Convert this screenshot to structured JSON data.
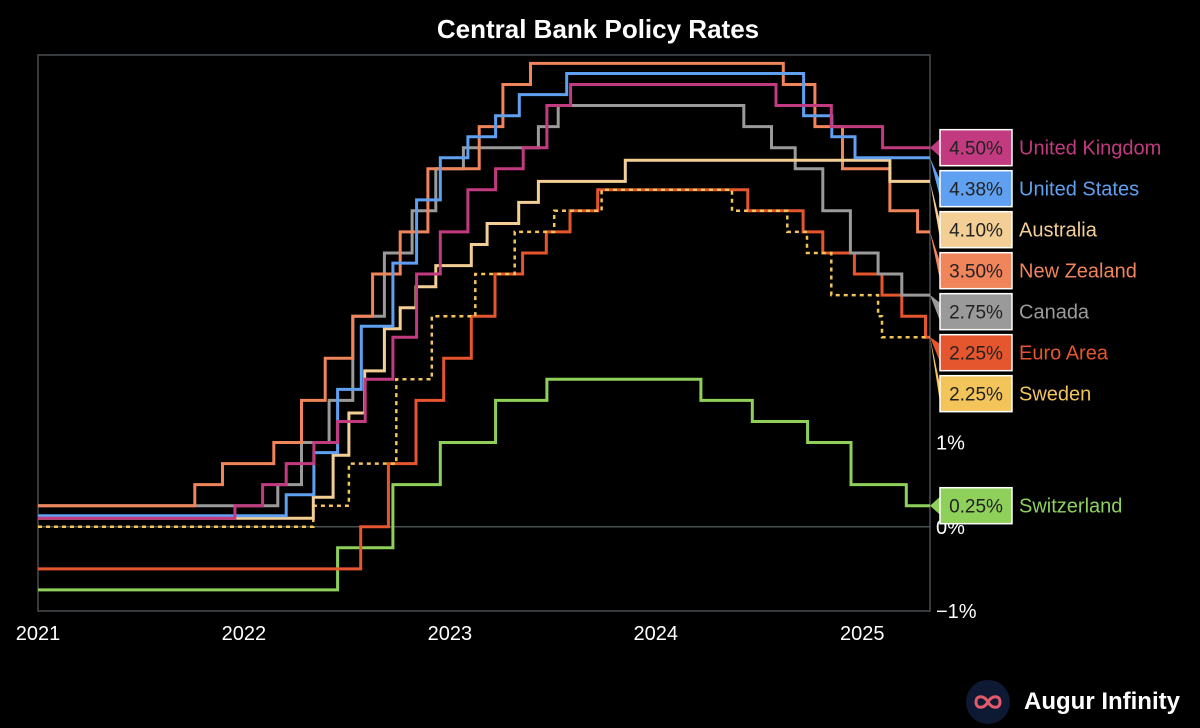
{
  "brand": {
    "name": "Augur Infinity",
    "logo_icon": "infinity-icon"
  },
  "chart_data": {
    "type": "line",
    "title": "Central Bank Policy Rates",
    "xlabel": "",
    "ylabel": "",
    "xlim": [
      "2021-01-01",
      "2025-05-01"
    ],
    "ylim": [
      -1.0,
      5.6
    ],
    "x_ticks": [
      {
        "date": "2021-01-01",
        "label": "2021"
      },
      {
        "date": "2022-01-01",
        "label": "2022"
      },
      {
        "date": "2023-01-01",
        "label": "2023"
      },
      {
        "date": "2024-01-01",
        "label": "2024"
      },
      {
        "date": "2025-01-01",
        "label": "2025"
      }
    ],
    "y_ticks": [
      {
        "value": 1,
        "label": "1%"
      },
      {
        "value": 0,
        "label": "0%"
      },
      {
        "value": -1,
        "label": "−1%"
      }
    ],
    "grid": false,
    "legend": "right",
    "series": [
      {
        "name": "Switzerland",
        "label": "0.25%",
        "color": "#8ed05a",
        "dashed": false,
        "steps": [
          [
            "2021-01-01",
            -0.75
          ],
          [
            "2022-06-16",
            -0.25
          ],
          [
            "2022-09-22",
            0.5
          ],
          [
            "2022-12-15",
            1.0
          ],
          [
            "2023-03-23",
            1.5
          ],
          [
            "2023-06-22",
            1.75
          ],
          [
            "2024-03-21",
            1.5
          ],
          [
            "2024-06-20",
            1.25
          ],
          [
            "2024-09-26",
            1.0
          ],
          [
            "2024-12-12",
            0.5
          ],
          [
            "2025-03-20",
            0.25
          ],
          [
            "2025-05-01",
            0.25
          ]
        ]
      },
      {
        "name": "Euro Area",
        "label": "2.25%",
        "color": "#e5552e",
        "dashed": false,
        "steps": [
          [
            "2021-01-01",
            -0.5
          ],
          [
            "2022-07-27",
            0.0
          ],
          [
            "2022-09-14",
            0.75
          ],
          [
            "2022-11-02",
            1.5
          ],
          [
            "2022-12-21",
            2.0
          ],
          [
            "2023-02-08",
            2.5
          ],
          [
            "2023-03-22",
            3.0
          ],
          [
            "2023-05-10",
            3.25
          ],
          [
            "2023-06-21",
            3.5
          ],
          [
            "2023-08-02",
            3.75
          ],
          [
            "2023-09-20",
            4.0
          ],
          [
            "2024-06-12",
            3.75
          ],
          [
            "2024-09-18",
            3.5
          ],
          [
            "2024-10-23",
            3.25
          ],
          [
            "2024-12-18",
            3.0
          ],
          [
            "2025-02-05",
            2.75
          ],
          [
            "2025-03-12",
            2.5
          ],
          [
            "2025-04-23",
            2.25
          ],
          [
            "2025-05-01",
            2.25
          ]
        ]
      },
      {
        "name": "Sweden",
        "label": "2.25%",
        "color": "#f2c45a",
        "dashed": true,
        "steps": [
          [
            "2021-01-01",
            0.0
          ],
          [
            "2022-05-04",
            0.25
          ],
          [
            "2022-07-06",
            0.75
          ],
          [
            "2022-09-28",
            1.75
          ],
          [
            "2022-11-30",
            2.5
          ],
          [
            "2023-02-15",
            3.0
          ],
          [
            "2023-04-26",
            3.5
          ],
          [
            "2023-07-05",
            3.75
          ],
          [
            "2023-09-27",
            4.0
          ],
          [
            "2024-05-15",
            3.75
          ],
          [
            "2024-08-21",
            3.5
          ],
          [
            "2024-09-25",
            3.25
          ],
          [
            "2024-11-07",
            2.75
          ],
          [
            "2025-01-29",
            2.5
          ],
          [
            "2025-02-05",
            2.25
          ],
          [
            "2025-05-01",
            2.25
          ]
        ]
      },
      {
        "name": "Canada",
        "label": "2.75%",
        "color": "#9a9a9a",
        "dashed": false,
        "steps": [
          [
            "2021-01-01",
            0.25
          ],
          [
            "2022-03-02",
            0.5
          ],
          [
            "2022-04-13",
            1.0
          ],
          [
            "2022-06-01",
            1.5
          ],
          [
            "2022-07-13",
            2.5
          ],
          [
            "2022-09-07",
            3.25
          ],
          [
            "2022-10-26",
            3.75
          ],
          [
            "2022-12-07",
            4.25
          ],
          [
            "2023-01-25",
            4.5
          ],
          [
            "2023-06-07",
            4.75
          ],
          [
            "2023-07-12",
            5.0
          ],
          [
            "2024-06-05",
            4.75
          ],
          [
            "2024-07-24",
            4.5
          ],
          [
            "2024-09-04",
            4.25
          ],
          [
            "2024-10-23",
            3.75
          ],
          [
            "2024-12-11",
            3.25
          ],
          [
            "2025-01-29",
            3.0
          ],
          [
            "2025-03-12",
            2.75
          ],
          [
            "2025-05-01",
            2.75
          ]
        ]
      },
      {
        "name": "New Zealand",
        "label": "3.50%",
        "color": "#f0845a",
        "dashed": false,
        "steps": [
          [
            "2021-01-01",
            0.25
          ],
          [
            "2021-10-06",
            0.5
          ],
          [
            "2021-11-24",
            0.75
          ],
          [
            "2022-02-23",
            1.0
          ],
          [
            "2022-04-13",
            1.5
          ],
          [
            "2022-05-25",
            2.0
          ],
          [
            "2022-07-13",
            2.5
          ],
          [
            "2022-08-17",
            3.0
          ],
          [
            "2022-10-05",
            3.5
          ],
          [
            "2022-11-23",
            4.25
          ],
          [
            "2023-02-22",
            4.75
          ],
          [
            "2023-04-05",
            5.25
          ],
          [
            "2023-05-24",
            5.5
          ],
          [
            "2024-08-14",
            5.25
          ],
          [
            "2024-10-09",
            4.75
          ],
          [
            "2024-11-27",
            4.25
          ],
          [
            "2025-02-19",
            3.75
          ],
          [
            "2025-04-09",
            3.5
          ],
          [
            "2025-05-01",
            3.5
          ]
        ]
      },
      {
        "name": "Australia",
        "label": "4.10%",
        "color": "#f3cf96",
        "dashed": false,
        "steps": [
          [
            "2021-01-01",
            0.1
          ],
          [
            "2022-05-04",
            0.35
          ],
          [
            "2022-06-08",
            0.85
          ],
          [
            "2022-07-06",
            1.35
          ],
          [
            "2022-08-03",
            1.85
          ],
          [
            "2022-09-07",
            2.35
          ],
          [
            "2022-10-05",
            2.6
          ],
          [
            "2022-11-02",
            2.85
          ],
          [
            "2022-12-07",
            3.1
          ],
          [
            "2023-02-08",
            3.35
          ],
          [
            "2023-03-08",
            3.6
          ],
          [
            "2023-05-03",
            3.85
          ],
          [
            "2023-06-07",
            4.1
          ],
          [
            "2023-11-08",
            4.35
          ],
          [
            "2025-02-19",
            4.1
          ],
          [
            "2025-05-01",
            4.1
          ]
        ]
      },
      {
        "name": "United States",
        "label": "4.38%",
        "color": "#5fa0f0",
        "dashed": false,
        "steps": [
          [
            "2021-01-01",
            0.13
          ],
          [
            "2022-03-17",
            0.38
          ],
          [
            "2022-05-05",
            0.88
          ],
          [
            "2022-06-16",
            1.63
          ],
          [
            "2022-07-28",
            2.38
          ],
          [
            "2022-09-22",
            3.13
          ],
          [
            "2022-11-03",
            3.88
          ],
          [
            "2022-12-15",
            4.38
          ],
          [
            "2023-02-02",
            4.63
          ],
          [
            "2023-03-23",
            4.88
          ],
          [
            "2023-05-04",
            5.13
          ],
          [
            "2023-07-27",
            5.38
          ],
          [
            "2024-09-19",
            4.88
          ],
          [
            "2024-11-08",
            4.63
          ],
          [
            "2024-12-19",
            4.38
          ],
          [
            "2025-05-01",
            4.38
          ]
        ]
      },
      {
        "name": "United Kingdom",
        "label": "4.50%",
        "color": "#c23a7f",
        "dashed": false,
        "steps": [
          [
            "2021-01-01",
            0.1
          ],
          [
            "2021-12-16",
            0.25
          ],
          [
            "2022-02-03",
            0.5
          ],
          [
            "2022-03-17",
            0.75
          ],
          [
            "2022-05-05",
            1.0
          ],
          [
            "2022-06-16",
            1.25
          ],
          [
            "2022-08-04",
            1.75
          ],
          [
            "2022-09-22",
            2.25
          ],
          [
            "2022-11-03",
            3.0
          ],
          [
            "2022-12-15",
            3.5
          ],
          [
            "2023-02-02",
            4.0
          ],
          [
            "2023-03-23",
            4.25
          ],
          [
            "2023-05-11",
            4.5
          ],
          [
            "2023-06-22",
            5.0
          ],
          [
            "2023-08-03",
            5.25
          ],
          [
            "2024-08-01",
            5.0
          ],
          [
            "2024-11-07",
            4.75
          ],
          [
            "2025-02-06",
            4.5
          ],
          [
            "2025-05-01",
            4.5
          ]
        ]
      }
    ]
  }
}
